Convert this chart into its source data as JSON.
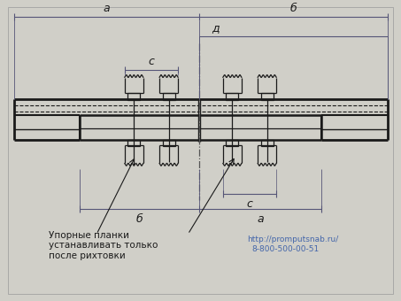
{
  "bg_color": "#d0cfc8",
  "line_color": "#1a1a1a",
  "dim_color": "#555577",
  "text_color": "#1a1a1a",
  "fig_width": 4.53,
  "fig_height": 3.4,
  "dpi": 100,
  "label_a_top": "а",
  "label_b_top": "б",
  "label_d": "д",
  "label_c_top": "с",
  "label_b_bot": "б",
  "label_a_bot": "а",
  "label_c_bot": "с",
  "text1": "Упорные планки",
  "text2": "устанавливать только",
  "text3": "после рихтовки",
  "url": "http://promputsnab.ru/",
  "phone": "8-800-500-00-51"
}
